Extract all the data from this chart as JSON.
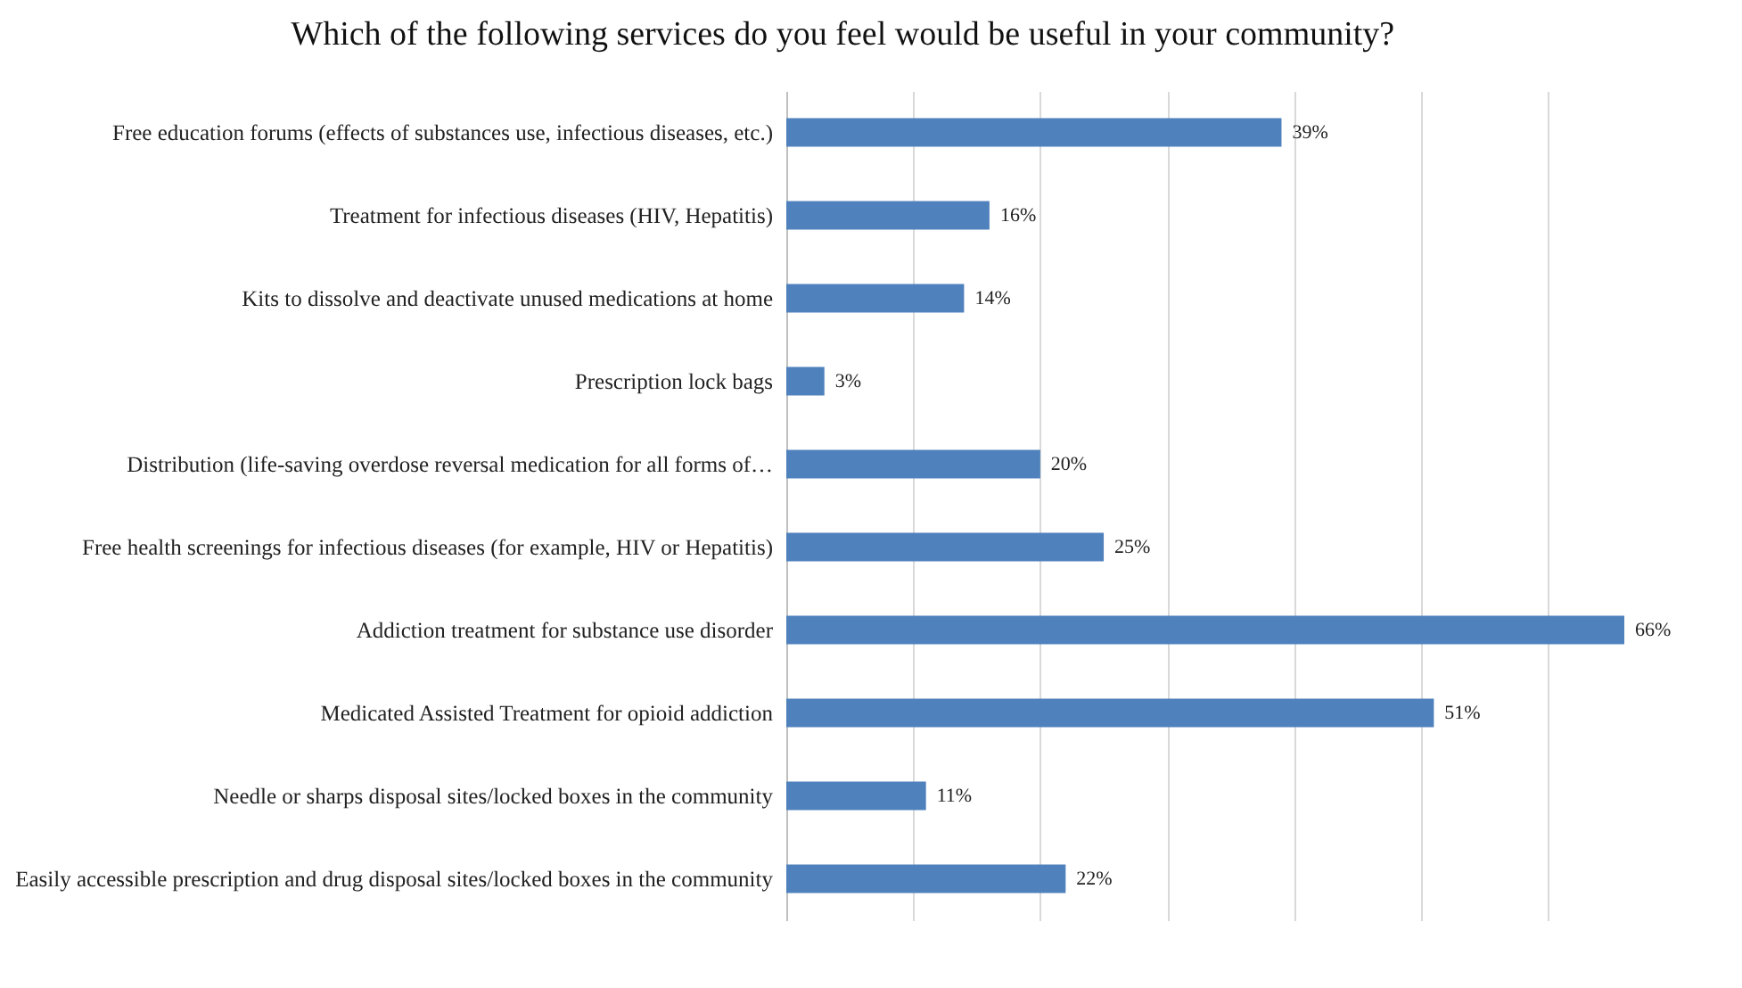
{
  "chart_data": {
    "type": "bar",
    "orientation": "horizontal",
    "title": "Which of the following services do you feel would be useful in your community?",
    "categories": [
      "Free education forums (effects of substances use, infectious diseases, etc.)",
      "Treatment for infectious diseases (HIV, Hepatitis)",
      "Kits to dissolve and deactivate unused medications at home",
      "Prescription lock bags",
      "Distribution (life-saving overdose reversal medication for all forms of…",
      "Free health screenings for infectious diseases (for example, HIV or Hepatitis)",
      "Addiction treatment for substance use disorder",
      "Medicated Assisted Treatment for opioid addiction",
      "Needle or sharps disposal sites/locked boxes in the community",
      "Easily accessible prescription and drug disposal sites/locked boxes in the community"
    ],
    "values": [
      39,
      16,
      14,
      3,
      20,
      25,
      66,
      51,
      11,
      22
    ],
    "value_labels": [
      "39%",
      "16%",
      "14%",
      "3%",
      "20%",
      "25%",
      "66%",
      "51%",
      "11%",
      "22%"
    ],
    "color": "#4f81bd",
    "grid": "x",
    "tick_labels": "y"
  }
}
